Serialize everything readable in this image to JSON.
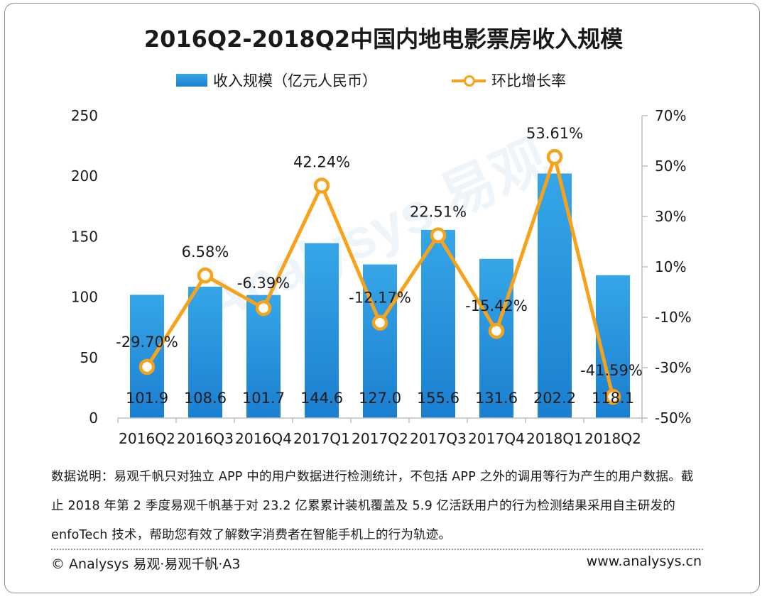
{
  "title": "2016Q2-2018Q2中国内地电影票房收入规模",
  "legend": {
    "bar_label": "收入规模（亿元人民币）",
    "line_label": "环比增长率"
  },
  "watermark": {
    "text": "Analysys 易观"
  },
  "colors": {
    "bar_top": "#36a6e8",
    "bar_bottom": "#1a7fd0",
    "line": "#f7a21b",
    "axis": "#bfbfbf",
    "text": "#1a1a1a"
  },
  "chart_data": {
    "type": "bar+line",
    "categories": [
      "2016Q2",
      "2016Q3",
      "2016Q4",
      "2017Q1",
      "2017Q2",
      "2017Q3",
      "2017Q4",
      "2018Q1",
      "2018Q2"
    ],
    "series": [
      {
        "name": "收入规模（亿元人民币）",
        "type": "bar",
        "axis": "left",
        "values": [
          101.9,
          108.6,
          101.7,
          144.6,
          127.0,
          155.6,
          131.6,
          202.2,
          118.1
        ],
        "labels": [
          "101.9",
          "108.6",
          "101.7",
          "144.6",
          "127.0",
          "155.6",
          "131.6",
          "202.2",
          "118.1"
        ]
      },
      {
        "name": "环比增长率",
        "type": "line",
        "axis": "right",
        "values": [
          -29.7,
          6.58,
          -6.39,
          42.24,
          -12.17,
          22.51,
          -15.42,
          53.61,
          -41.59
        ],
        "labels": [
          "-29.70%",
          "6.58%",
          "-6.39%",
          "42.24%",
          "-12.17%",
          "22.51%",
          "-15.42%",
          "53.61%",
          "-41.59%"
        ]
      }
    ],
    "y_left": {
      "min": 0,
      "max": 250,
      "ticks": [
        0,
        50,
        100,
        150,
        200,
        250
      ],
      "tick_labels": [
        "0",
        "50",
        "100",
        "150",
        "200",
        "250"
      ]
    },
    "y_right": {
      "min": -50,
      "max": 70,
      "ticks": [
        -50,
        -30,
        -10,
        10,
        30,
        50,
        70
      ],
      "tick_labels": [
        "-50%",
        "-30%",
        "-10%",
        "10%",
        "30%",
        "50%",
        "70%"
      ]
    },
    "grid": false
  },
  "footnote": {
    "line1": "数据说明：易观千帆只对独立 APP 中的用户数据进行检测统计，不包括 APP 之外的调用等行为产生的用户数据。截",
    "line2": "止 2018 年第 2 季度易观千帆基于对 23.2 亿累累计装机覆盖及 5.9 亿活跃用户的行为检测结果采用自主研发的",
    "line3": "enfoTech 技术，帮助您有效了解数字消费者在智能手机上的行为轨迹。"
  },
  "footer": {
    "left": "© Analysys 易观·易观千帆·A3",
    "right": "www.analysys.cn"
  }
}
